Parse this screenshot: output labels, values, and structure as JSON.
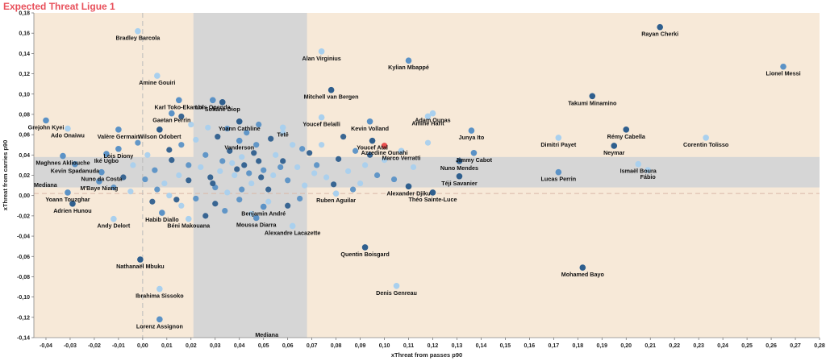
{
  "title": "Expected Threat Ligue 1",
  "chart_data": {
    "type": "scatter",
    "title": "Expected Threat Ligue 1",
    "xlabel": "xThreat from passes p90",
    "ylabel": "xThreat from carries p90",
    "xlim": [
      -0.045,
      0.28
    ],
    "ylim": [
      -0.14,
      0.18
    ],
    "x_ticks": [
      -0.04,
      -0.03,
      -0.02,
      -0.01,
      0.0,
      0.01,
      0.02,
      0.03,
      0.04,
      0.05,
      0.06,
      0.07,
      0.08,
      0.09,
      0.1,
      0.11,
      0.12,
      0.13,
      0.14,
      0.15,
      0.16,
      0.17,
      0.18,
      0.19,
      0.2,
      0.21,
      0.22,
      0.23,
      0.24,
      0.25,
      0.26,
      0.27,
      0.28
    ],
    "x_tick_labels": [
      "-0,04",
      "-0,03",
      "-0,02",
      "-0,01",
      "0,00",
      "0,01",
      "0,02",
      "0,03",
      "0,04",
      "0,05",
      "0,06",
      "0,07",
      "0,08",
      "0,09",
      "0,10",
      "0,11",
      "0,12",
      "0,13",
      "0,14",
      "0,15",
      "0,16",
      "0,17",
      "0,18",
      "0,19",
      "0,20",
      "0,21",
      "0,22",
      "0,23",
      "0,24",
      "0,25",
      "0,26",
      "0,27",
      "0,28"
    ],
    "y_ticks": [
      -0.14,
      -0.12,
      -0.1,
      -0.08,
      -0.06,
      -0.04,
      -0.02,
      0.0,
      0.02,
      0.04,
      0.06,
      0.08,
      0.1,
      0.12,
      0.14,
      0.16,
      0.18
    ],
    "y_tick_labels": [
      "-0,14",
      "-0,12",
      "-0,10",
      "-0,08",
      "-0,06",
      "-0,04",
      "-0,02",
      "0,00",
      "0,02",
      "0,04",
      "0,06",
      "0,08",
      "0,10",
      "0,12",
      "0,14",
      "0,16",
      "0,18"
    ],
    "median_x": 0.0,
    "median_y": 0.002,
    "median_label": "Mediana",
    "vertical_band": [
      0.021,
      0.068
    ],
    "horizontal_band": [
      0.008,
      0.038
    ],
    "colors": {
      "background": "#f7e9d8",
      "band": "#d6d6d6",
      "dark": "#2f5f8e",
      "medium": "#5b92c6",
      "light": "#a9d0ee",
      "highlight": "#e94f4f",
      "median_line": "#bbbbbb"
    },
    "labeled_points": [
      {
        "name": "Rayan Cherki",
        "x": 0.214,
        "y": 0.166,
        "shade": "dark"
      },
      {
        "name": "Lionel Messi",
        "x": 0.265,
        "y": 0.127,
        "shade": "medium"
      },
      {
        "name": "Bradley Barcola",
        "x": -0.002,
        "y": 0.162,
        "shade": "light"
      },
      {
        "name": "Alan Virginius",
        "x": 0.074,
        "y": 0.142,
        "shade": "light"
      },
      {
        "name": "Kylian Mbappé",
        "x": 0.11,
        "y": 0.133,
        "shade": "medium"
      },
      {
        "name": "Amine Gouiri",
        "x": 0.006,
        "y": 0.118,
        "shade": "light"
      },
      {
        "name": "Loïs Openda",
        "x": 0.029,
        "y": 0.094,
        "shade": "medium"
      },
      {
        "name": "Sofiane Diop",
        "x": 0.033,
        "y": 0.092,
        "shade": "dark"
      },
      {
        "name": "Mitchell van Bergen",
        "x": 0.078,
        "y": 0.104,
        "shade": "dark"
      },
      {
        "name": "Takumi Minamino",
        "x": 0.186,
        "y": 0.098,
        "shade": "dark"
      },
      {
        "name": "Karl Toko-Ekambi",
        "x": 0.015,
        "y": 0.094,
        "shade": "medium"
      },
      {
        "name": "Gaetan Perrin",
        "x": 0.012,
        "y": 0.081,
        "shade": "medium"
      },
      {
        "name": "Adam Ounas",
        "x": 0.12,
        "y": 0.081,
        "shade": "light"
      },
      {
        "name": "Youcef Belaïli",
        "x": 0.074,
        "y": 0.077,
        "shade": "light"
      },
      {
        "name": "Kevin Volland",
        "x": 0.094,
        "y": 0.073,
        "shade": "medium"
      },
      {
        "name": "Amine Harit",
        "x": 0.118,
        "y": 0.078,
        "shade": "light"
      },
      {
        "name": "Yoann Cathline",
        "x": 0.04,
        "y": 0.073,
        "shade": "dark"
      },
      {
        "name": "Tetê",
        "x": 0.058,
        "y": 0.067,
        "shade": "light"
      },
      {
        "name": "Grejohn Kyei",
        "x": -0.04,
        "y": 0.074,
        "shade": "medium"
      },
      {
        "name": "Ado Onaiwu",
        "x": -0.031,
        "y": 0.066,
        "shade": "light"
      },
      {
        "name": "Valère Germain",
        "x": -0.01,
        "y": 0.065,
        "shade": "medium"
      },
      {
        "name": "Wilson Odobert",
        "x": 0.007,
        "y": 0.065,
        "shade": "dark"
      },
      {
        "name": "Rémy Cabella",
        "x": 0.2,
        "y": 0.065,
        "shade": "dark"
      },
      {
        "name": "Junya Ito",
        "x": 0.136,
        "y": 0.064,
        "shade": "medium"
      },
      {
        "name": "Dimitri Payet",
        "x": 0.172,
        "y": 0.057,
        "shade": "light"
      },
      {
        "name": "Corentin Tolisso",
        "x": 0.233,
        "y": 0.057,
        "shade": "light"
      },
      {
        "name": "Youcef Atal",
        "x": 0.095,
        "y": 0.054,
        "shade": "dark"
      },
      {
        "name": "Vanderson",
        "x": 0.04,
        "y": 0.054,
        "shade": "medium"
      },
      {
        "name": "Neymar",
        "x": 0.195,
        "y": 0.049,
        "shade": "dark"
      },
      {
        "name": "Lois Diony",
        "x": -0.01,
        "y": 0.046,
        "shade": "medium"
      },
      {
        "name": "Maghnes Akliouche",
        "x": -0.033,
        "y": 0.039,
        "shade": "medium"
      },
      {
        "name": "Iké Ugbo",
        "x": -0.015,
        "y": 0.041,
        "shade": "medium"
      },
      {
        "name": "Azzedine Ounahi",
        "x": 0.1,
        "y": 0.049,
        "shade": "highlight"
      },
      {
        "name": "Marco Verratti",
        "x": 0.107,
        "y": 0.044,
        "shade": "light"
      },
      {
        "name": "Jimmy Cabot",
        "x": 0.137,
        "y": 0.042,
        "shade": "medium"
      },
      {
        "name": "Kevin Spadanuda",
        "x": -0.028,
        "y": 0.031,
        "shade": "medium"
      },
      {
        "name": "Ismaël Boura",
        "x": 0.205,
        "y": 0.031,
        "shade": "light"
      },
      {
        "name": "Nuno Mendes",
        "x": 0.131,
        "y": 0.034,
        "shade": "dark"
      },
      {
        "name": "Lucas Perrin",
        "x": 0.172,
        "y": 0.023,
        "shade": "medium"
      },
      {
        "name": "Fábio",
        "x": 0.209,
        "y": 0.025,
        "shade": "light"
      },
      {
        "name": "Téji Savanier",
        "x": 0.131,
        "y": 0.019,
        "shade": "dark"
      },
      {
        "name": "Nuno da Costa",
        "x": -0.017,
        "y": 0.023,
        "shade": "medium"
      },
      {
        "name": "M'Baye Niang",
        "x": -0.018,
        "y": 0.014,
        "shade": "medium"
      },
      {
        "name": "Alexander Djiku",
        "x": 0.11,
        "y": 0.009,
        "shade": "dark"
      },
      {
        "name": "Théo Sainte-Luce",
        "x": 0.12,
        "y": 0.003,
        "shade": "dark"
      },
      {
        "name": "Ruben Aguilar",
        "x": 0.08,
        "y": 0.002,
        "shade": "light"
      },
      {
        "name": "Adrien Hunou",
        "x": -0.029,
        "y": -0.008,
        "shade": "dark"
      },
      {
        "name": "Yoann Touzghar",
        "x": -0.031,
        "y": 0.003,
        "shade": "medium"
      },
      {
        "name": "Benjamin André",
        "x": 0.05,
        "y": -0.011,
        "shade": "medium"
      },
      {
        "name": "Habib Diallo",
        "x": 0.008,
        "y": -0.017,
        "shade": "medium"
      },
      {
        "name": "Andy Delort",
        "x": -0.012,
        "y": -0.023,
        "shade": "light"
      },
      {
        "name": "Moussa Diarra",
        "x": 0.047,
        "y": -0.022,
        "shade": "medium"
      },
      {
        "name": "Béni Makouana",
        "x": 0.019,
        "y": -0.023,
        "shade": "light"
      },
      {
        "name": "Alexandre Lacazette",
        "x": 0.062,
        "y": -0.03,
        "shade": "light"
      },
      {
        "name": "Quentin Boisgard",
        "x": 0.092,
        "y": -0.051,
        "shade": "dark"
      },
      {
        "name": "Nathanaël Mbuku",
        "x": -0.001,
        "y": -0.063,
        "shade": "dark"
      },
      {
        "name": "Mohamed Bayo",
        "x": 0.182,
        "y": -0.071,
        "shade": "dark"
      },
      {
        "name": "Ibrahima Sissoko",
        "x": 0.007,
        "y": -0.092,
        "shade": "light"
      },
      {
        "name": "Denis Genreau",
        "x": 0.105,
        "y": -0.089,
        "shade": "light"
      },
      {
        "name": "Lorenz Assignon",
        "x": 0.007,
        "y": -0.122,
        "shade": "medium"
      }
    ],
    "unlabeled_points": [
      {
        "x": 0.042,
        "y": 0.03,
        "shade": "dark"
      },
      {
        "x": 0.038,
        "y": 0.02,
        "shade": "light"
      },
      {
        "x": 0.05,
        "y": 0.025,
        "shade": "medium"
      },
      {
        "x": 0.045,
        "y": 0.012,
        "shade": "light"
      },
      {
        "x": 0.033,
        "y": 0.034,
        "shade": "medium"
      },
      {
        "x": 0.028,
        "y": 0.018,
        "shade": "dark"
      },
      {
        "x": 0.055,
        "y": 0.04,
        "shade": "light"
      },
      {
        "x": 0.06,
        "y": 0.015,
        "shade": "medium"
      },
      {
        "x": 0.024,
        "y": 0.028,
        "shade": "light"
      },
      {
        "x": 0.036,
        "y": 0.044,
        "shade": "dark"
      },
      {
        "x": 0.047,
        "y": 0.05,
        "shade": "medium"
      },
      {
        "x": 0.052,
        "y": 0.006,
        "shade": "dark"
      },
      {
        "x": 0.064,
        "y": 0.028,
        "shade": "light"
      },
      {
        "x": 0.03,
        "y": 0.008,
        "shade": "medium"
      },
      {
        "x": 0.041,
        "y": 0.038,
        "shade": "light"
      },
      {
        "x": 0.058,
        "y": 0.034,
        "shade": "dark"
      },
      {
        "x": 0.026,
        "y": 0.04,
        "shade": "medium"
      },
      {
        "x": 0.035,
        "y": 0.003,
        "shade": "light"
      },
      {
        "x": 0.049,
        "y": 0.018,
        "shade": "dark"
      },
      {
        "x": 0.067,
        "y": 0.01,
        "shade": "light"
      },
      {
        "x": 0.019,
        "y": 0.03,
        "shade": "medium"
      },
      {
        "x": 0.015,
        "y": 0.02,
        "shade": "light"
      },
      {
        "x": 0.012,
        "y": 0.035,
        "shade": "dark"
      },
      {
        "x": 0.009,
        "y": 0.012,
        "shade": "light"
      },
      {
        "x": 0.005,
        "y": 0.025,
        "shade": "medium"
      },
      {
        "x": 0.002,
        "y": 0.04,
        "shade": "light"
      },
      {
        "x": 0.016,
        "y": 0.05,
        "shade": "medium"
      },
      {
        "x": 0.022,
        "y": 0.055,
        "shade": "light"
      },
      {
        "x": 0.011,
        "y": 0.045,
        "shade": "dark"
      },
      {
        "x": 0.006,
        "y": 0.006,
        "shade": "medium"
      },
      {
        "x": 0.072,
        "y": 0.03,
        "shade": "medium"
      },
      {
        "x": 0.076,
        "y": 0.018,
        "shade": "light"
      },
      {
        "x": 0.081,
        "y": 0.036,
        "shade": "dark"
      },
      {
        "x": 0.085,
        "y": 0.024,
        "shade": "light"
      },
      {
        "x": 0.088,
        "y": 0.044,
        "shade": "medium"
      },
      {
        "x": 0.079,
        "y": 0.011,
        "shade": "dark"
      },
      {
        "x": 0.092,
        "y": 0.03,
        "shade": "light"
      },
      {
        "x": 0.097,
        "y": 0.02,
        "shade": "medium"
      },
      {
        "x": 0.074,
        "y": 0.05,
        "shade": "light"
      },
      {
        "x": 0.083,
        "y": 0.058,
        "shade": "dark"
      },
      {
        "x": 0.1,
        "y": 0.035,
        "shade": "light"
      },
      {
        "x": 0.104,
        "y": 0.016,
        "shade": "medium"
      },
      {
        "x": 0.09,
        "y": 0.012,
        "shade": "light"
      },
      {
        "x": 0.069,
        "y": 0.042,
        "shade": "dark"
      },
      {
        "x": 0.087,
        "y": 0.006,
        "shade": "medium"
      },
      {
        "x": 0.094,
        "y": 0.04,
        "shade": "dark"
      },
      {
        "x": 0.071,
        "y": 0.022,
        "shade": "light"
      },
      {
        "x": 0.066,
        "y": 0.046,
        "shade": "medium"
      },
      {
        "x": 0.112,
        "y": 0.028,
        "shade": "light"
      },
      {
        "x": 0.118,
        "y": 0.052,
        "shade": "light"
      },
      {
        "x": 0.043,
        "y": 0.062,
        "shade": "medium"
      },
      {
        "x": 0.031,
        "y": 0.058,
        "shade": "dark"
      },
      {
        "x": 0.027,
        "y": 0.067,
        "shade": "light"
      },
      {
        "x": 0.053,
        "y": 0.056,
        "shade": "dark"
      },
      {
        "x": 0.062,
        "y": 0.05,
        "shade": "light"
      },
      {
        "x": 0.035,
        "y": 0.066,
        "shade": "medium"
      },
      {
        "x": 0.02,
        "y": 0.07,
        "shade": "light"
      },
      {
        "x": 0.048,
        "y": 0.07,
        "shade": "medium"
      },
      {
        "x": 0.016,
        "y": 0.078,
        "shade": "dark"
      },
      {
        "x": 0.058,
        "y": 0.062,
        "shade": "light"
      },
      {
        "x": 0.04,
        "y": -0.004,
        "shade": "medium"
      },
      {
        "x": 0.03,
        "y": -0.008,
        "shade": "dark"
      },
      {
        "x": 0.052,
        "y": -0.006,
        "shade": "light"
      },
      {
        "x": 0.022,
        "y": -0.003,
        "shade": "medium"
      },
      {
        "x": 0.06,
        "y": -0.01,
        "shade": "dark"
      },
      {
        "x": 0.016,
        "y": -0.01,
        "shade": "light"
      },
      {
        "x": 0.034,
        "y": -0.015,
        "shade": "medium"
      },
      {
        "x": 0.045,
        "y": -0.018,
        "shade": "light"
      },
      {
        "x": 0.026,
        "y": -0.02,
        "shade": "dark"
      },
      {
        "x": 0.065,
        "y": -0.003,
        "shade": "medium"
      },
      {
        "x": 0.004,
        "y": -0.006,
        "shade": "dark"
      },
      {
        "x": -0.005,
        "y": 0.004,
        "shade": "light"
      },
      {
        "x": -0.008,
        "y": 0.018,
        "shade": "dark"
      },
      {
        "x": -0.004,
        "y": 0.03,
        "shade": "light"
      },
      {
        "x": 0.001,
        "y": 0.016,
        "shade": "medium"
      },
      {
        "x": -0.012,
        "y": 0.008,
        "shade": "medium"
      },
      {
        "x": 0.011,
        "y": 0.0,
        "shade": "light"
      },
      {
        "x": 0.014,
        "y": -0.004,
        "shade": "dark"
      },
      {
        "x": -0.002,
        "y": 0.052,
        "shade": "medium"
      },
      {
        "x": 0.019,
        "y": 0.015,
        "shade": "dark"
      },
      {
        "x": 0.039,
        "y": 0.026,
        "shade": "dark"
      },
      {
        "x": 0.044,
        "y": 0.022,
        "shade": "medium"
      },
      {
        "x": 0.037,
        "y": 0.032,
        "shade": "light"
      },
      {
        "x": 0.048,
        "y": 0.034,
        "shade": "dark"
      },
      {
        "x": 0.054,
        "y": 0.02,
        "shade": "light"
      },
      {
        "x": 0.057,
        "y": 0.028,
        "shade": "medium"
      },
      {
        "x": 0.032,
        "y": 0.024,
        "shade": "light"
      },
      {
        "x": 0.029,
        "y": 0.012,
        "shade": "dark"
      },
      {
        "x": 0.041,
        "y": 0.006,
        "shade": "medium"
      },
      {
        "x": 0.046,
        "y": 0.042,
        "shade": "dark"
      }
    ]
  }
}
